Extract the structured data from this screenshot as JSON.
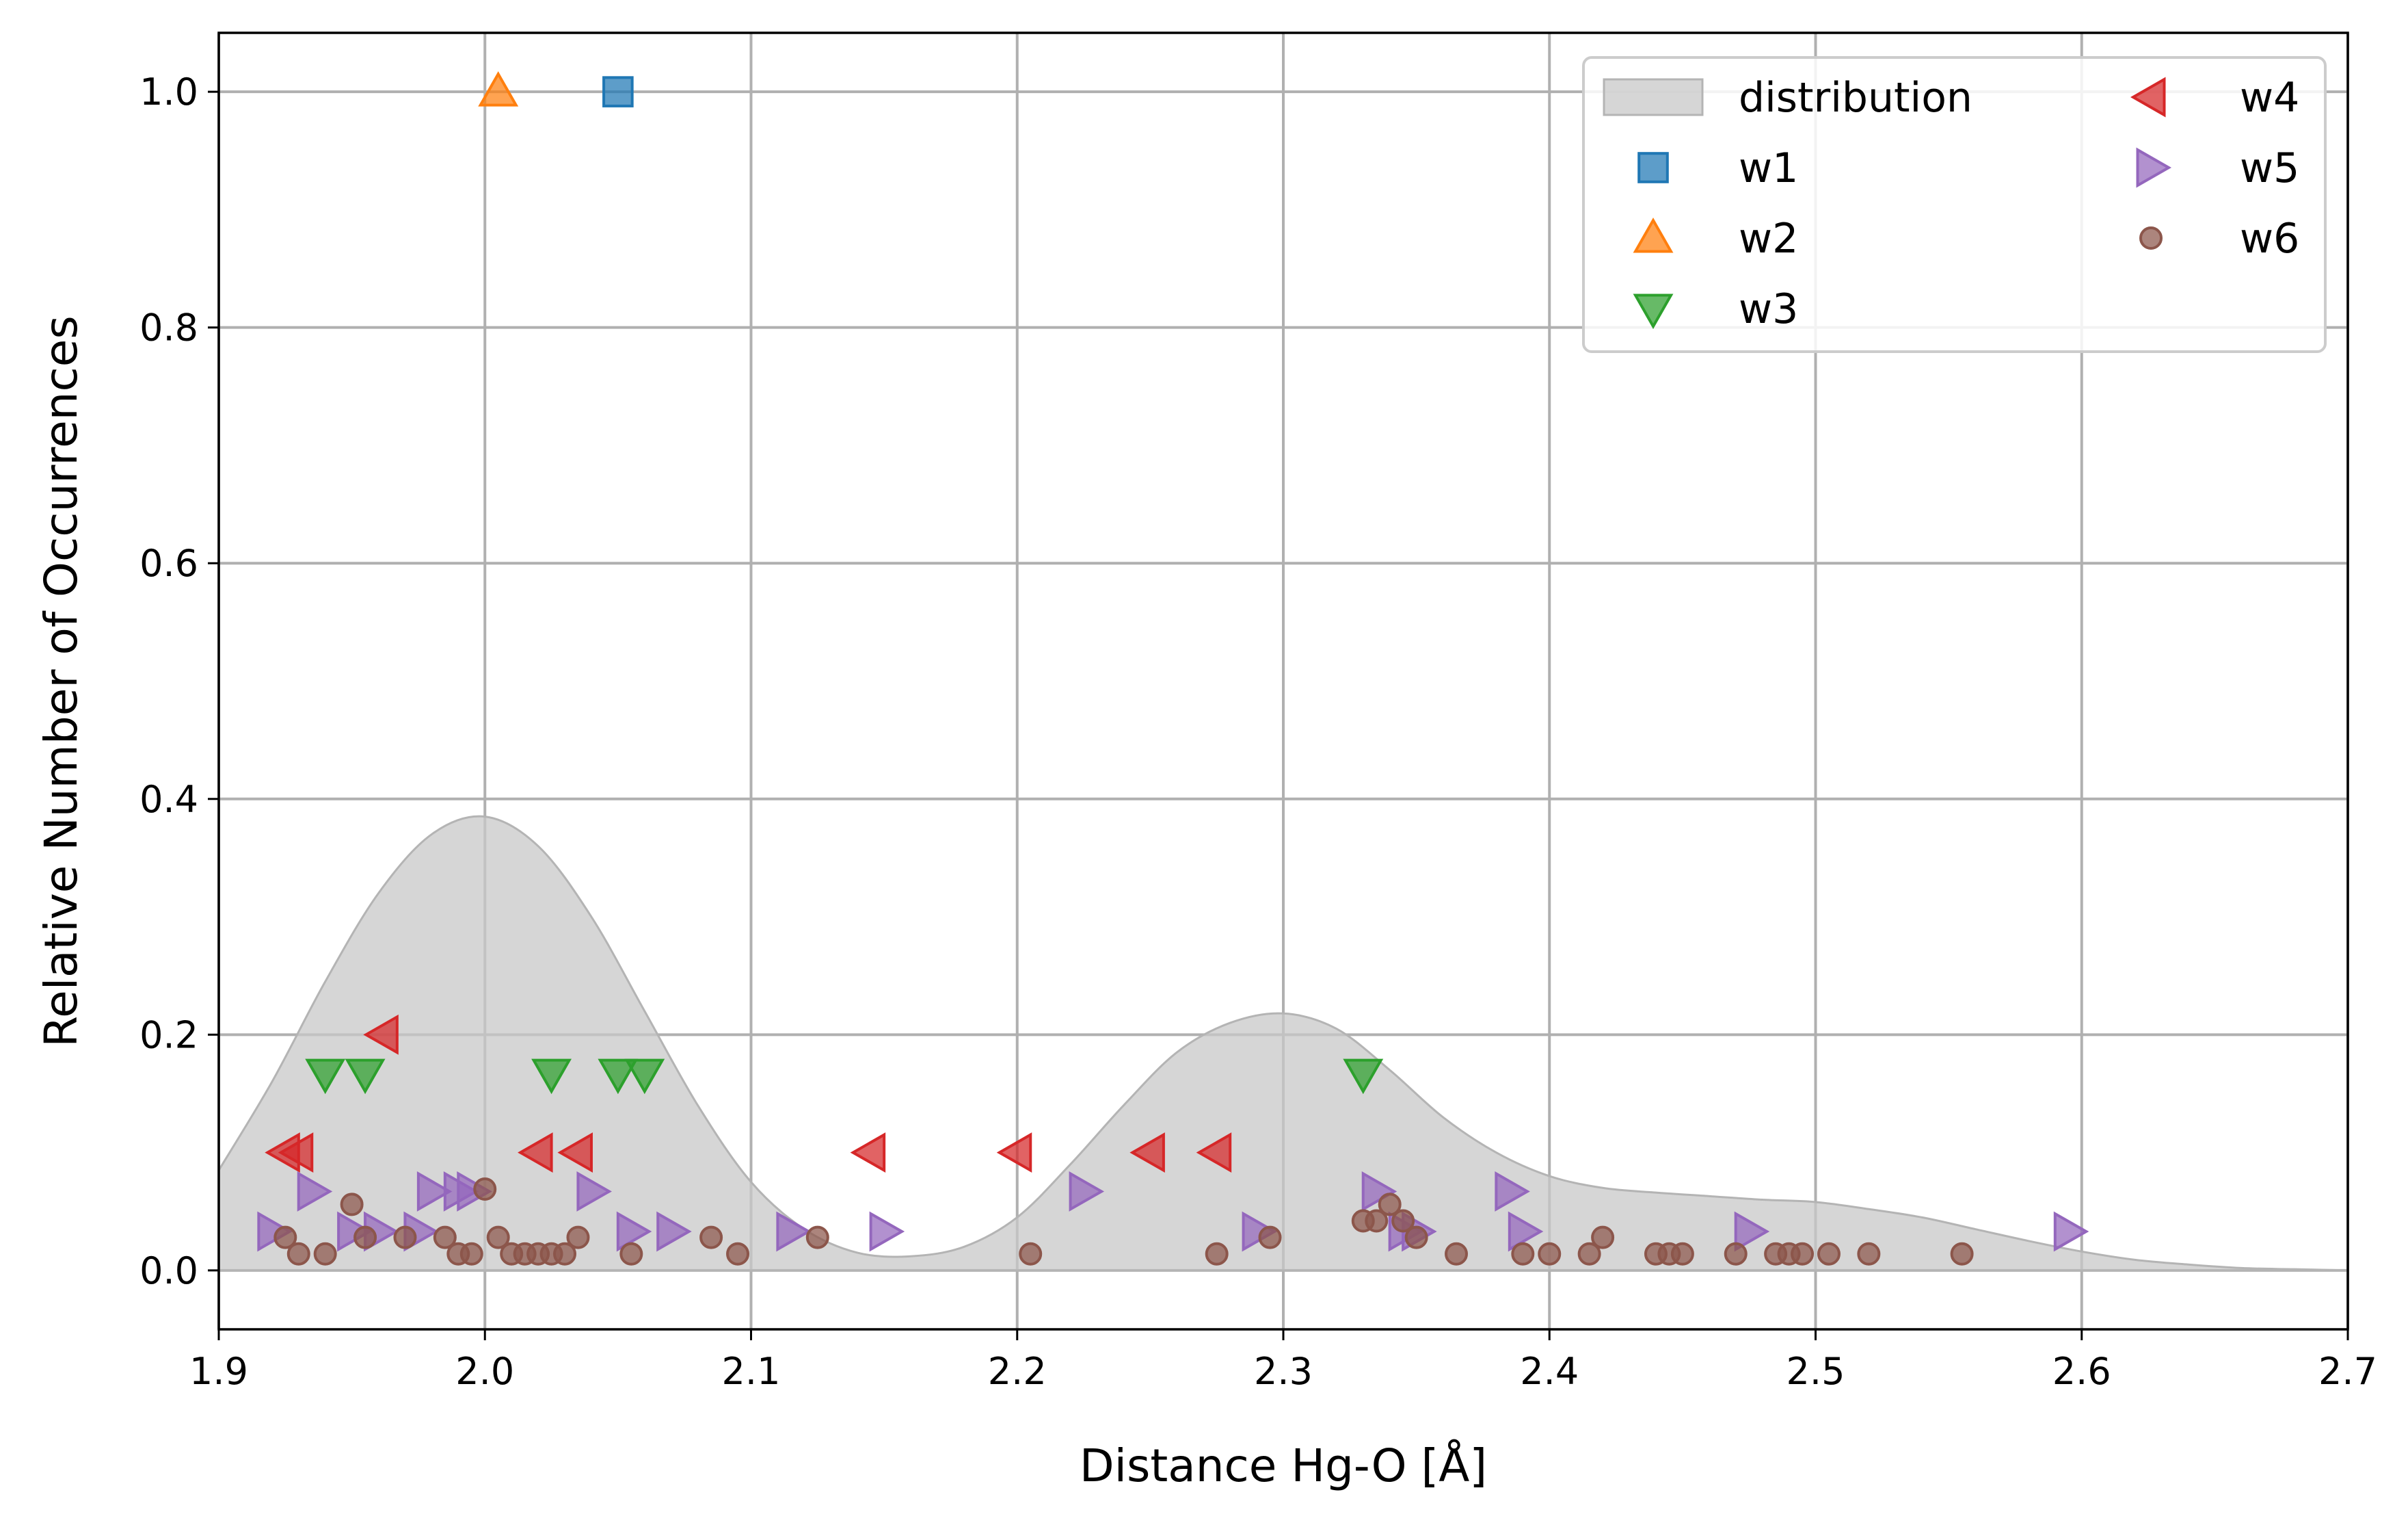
{
  "chart_data": {
    "type": "scatter",
    "title": "",
    "xlabel": "Distance Hg-O [Å]",
    "ylabel": "Relative Number of Occurrences",
    "xlim": [
      1.9,
      2.7
    ],
    "ylim": [
      -0.05,
      1.05
    ],
    "xticks": [
      1.9,
      2.0,
      2.1,
      2.2,
      2.3,
      2.4,
      2.5,
      2.6,
      2.7
    ],
    "xtick_labels": [
      "1.9",
      "2.0",
      "2.1",
      "2.2",
      "2.3",
      "2.4",
      "2.5",
      "2.6",
      "2.7"
    ],
    "yticks": [
      0.0,
      0.2,
      0.4,
      0.6,
      0.8,
      1.0
    ],
    "ytick_labels": [
      "0.0",
      "0.2",
      "0.4",
      "0.6",
      "0.8",
      "1.0"
    ],
    "grid": true,
    "legend_position": "top-right",
    "distribution": {
      "name": "distribution",
      "color": "#c8c8c8",
      "x": [
        1.9,
        1.92,
        1.94,
        1.96,
        1.98,
        2.0,
        2.02,
        2.04,
        2.06,
        2.08,
        2.1,
        2.12,
        2.14,
        2.16,
        2.18,
        2.2,
        2.22,
        2.24,
        2.26,
        2.28,
        2.3,
        2.32,
        2.34,
        2.36,
        2.38,
        2.4,
        2.42,
        2.44,
        2.46,
        2.48,
        2.5,
        2.52,
        2.54,
        2.56,
        2.58,
        2.6,
        2.62,
        2.64,
        2.66,
        2.68,
        2.7
      ],
      "y": [
        0.085,
        0.16,
        0.245,
        0.32,
        0.37,
        0.385,
        0.36,
        0.3,
        0.22,
        0.14,
        0.075,
        0.035,
        0.015,
        0.012,
        0.02,
        0.045,
        0.09,
        0.14,
        0.185,
        0.21,
        0.218,
        0.205,
        0.17,
        0.13,
        0.1,
        0.08,
        0.07,
        0.066,
        0.063,
        0.06,
        0.058,
        0.052,
        0.045,
        0.035,
        0.025,
        0.016,
        0.009,
        0.005,
        0.002,
        0.001,
        0.0
      ]
    },
    "series": [
      {
        "name": "w1",
        "marker": "square",
        "color": "#1f77b4",
        "x": [
          2.05
        ],
        "y": [
          1.0
        ]
      },
      {
        "name": "w2",
        "marker": "triangle-up",
        "color": "#ff7f0e",
        "x": [
          2.005
        ],
        "y": [
          1.0
        ]
      },
      {
        "name": "w3",
        "marker": "triangle-down",
        "color": "#2ca02c",
        "x": [
          1.94,
          1.955,
          2.025,
          2.05,
          2.06,
          2.33
        ],
        "y": [
          0.167,
          0.167,
          0.167,
          0.167,
          0.167,
          0.167
        ]
      },
      {
        "name": "w4",
        "marker": "triangle-left",
        "color": "#d62728",
        "x": [
          1.925,
          1.93,
          1.962,
          2.02,
          2.035,
          2.145,
          2.2,
          2.25,
          2.275
        ],
        "y": [
          0.1,
          0.1,
          0.2,
          0.1,
          0.1,
          0.1,
          0.1,
          0.1,
          0.1
        ]
      },
      {
        "name": "w5",
        "marker": "triangle-right",
        "color": "#9467bd",
        "x": [
          1.92,
          1.935,
          1.95,
          1.96,
          1.975,
          1.98,
          1.99,
          1.995,
          2.04,
          2.055,
          2.07,
          2.115,
          2.15,
          2.225,
          2.29,
          2.335,
          2.345,
          2.35,
          2.385,
          2.39,
          2.475,
          2.595
        ],
        "y": [
          0.033,
          0.067,
          0.033,
          0.033,
          0.033,
          0.067,
          0.067,
          0.067,
          0.067,
          0.033,
          0.033,
          0.033,
          0.033,
          0.067,
          0.033,
          0.067,
          0.033,
          0.033,
          0.067,
          0.033,
          0.033,
          0.033
        ]
      },
      {
        "name": "w6",
        "marker": "circle",
        "color": "#8c564b",
        "x": [
          1.925,
          1.93,
          1.94,
          1.95,
          1.955,
          1.97,
          1.985,
          1.99,
          1.995,
          2.0,
          2.005,
          2.01,
          2.015,
          2.02,
          2.025,
          2.03,
          2.035,
          2.055,
          2.085,
          2.095,
          2.125,
          2.205,
          2.275,
          2.295,
          2.33,
          2.335,
          2.34,
          2.345,
          2.35,
          2.365,
          2.39,
          2.4,
          2.415,
          2.42,
          2.44,
          2.445,
          2.45,
          2.47,
          2.485,
          2.49,
          2.495,
          2.505,
          2.52,
          2.555
        ],
        "y": [
          0.028,
          0.014,
          0.014,
          0.056,
          0.028,
          0.028,
          0.028,
          0.014,
          0.014,
          0.069,
          0.028,
          0.014,
          0.014,
          0.014,
          0.014,
          0.014,
          0.028,
          0.014,
          0.028,
          0.014,
          0.028,
          0.014,
          0.014,
          0.028,
          0.042,
          0.042,
          0.056,
          0.042,
          0.028,
          0.014,
          0.014,
          0.014,
          0.014,
          0.028,
          0.014,
          0.014,
          0.014,
          0.014,
          0.014,
          0.014,
          0.014,
          0.014,
          0.014,
          0.014
        ]
      }
    ]
  }
}
